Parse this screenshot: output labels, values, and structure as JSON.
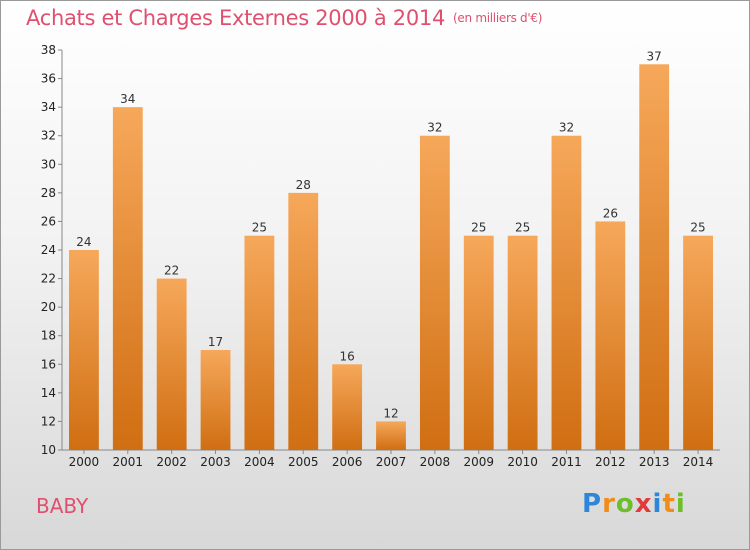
{
  "header": {
    "title": "Achats et Charges Externes 2000 à 2014",
    "subtitle": "(en milliers d'€)"
  },
  "footer": {
    "place": "BABY",
    "logo": [
      {
        "char": "P",
        "color": "#2e86d8"
      },
      {
        "char": "r",
        "color": "#f08c1a"
      },
      {
        "char": "o",
        "color": "#6cbf2a"
      },
      {
        "char": "x",
        "color": "#e03a3a"
      },
      {
        "char": "i",
        "color": "#2e86d8"
      },
      {
        "char": "t",
        "color": "#f08c1a"
      },
      {
        "char": "i",
        "color": "#6cbf2a"
      }
    ]
  },
  "colors": {
    "bar_top": "#f6a85a",
    "bar_bottom": "#d06e12",
    "title": "#e0506e"
  },
  "chart_data": {
    "type": "bar",
    "title": "Achats et Charges Externes 2000 à 2014",
    "subtitle": "(en milliers d'€)",
    "categories": [
      "2000",
      "2001",
      "2002",
      "2003",
      "2004",
      "2005",
      "2006",
      "2007",
      "2008",
      "2009",
      "2010",
      "2011",
      "2012",
      "2013",
      "2014"
    ],
    "values": [
      24,
      34,
      22,
      17,
      25,
      28,
      16,
      12,
      32,
      25,
      25,
      32,
      26,
      37,
      25
    ],
    "ylim": [
      10,
      38
    ],
    "yticks": [
      10,
      12,
      14,
      16,
      18,
      20,
      22,
      24,
      26,
      28,
      30,
      32,
      34,
      36,
      38
    ],
    "grid": false,
    "xlabel": "",
    "ylabel": ""
  }
}
